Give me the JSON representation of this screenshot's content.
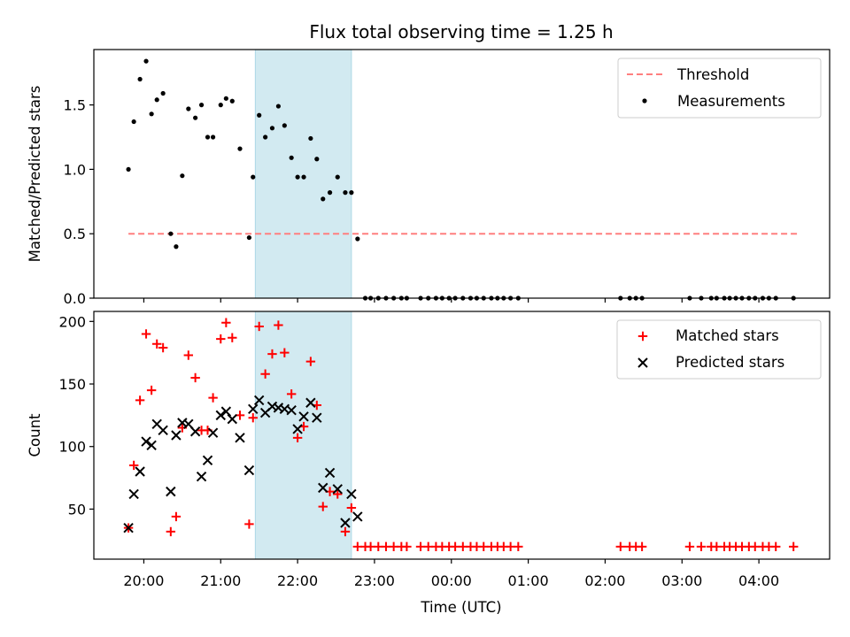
{
  "chart_data": {
    "title": "Flux total observing time = 1.25 h",
    "xlabel": "Time (UTC)",
    "x_unit": "hours UTC (hours past 24 = next day)",
    "x_ticks": [
      {
        "t": 20,
        "label": "20:00"
      },
      {
        "t": 21,
        "label": "21:00"
      },
      {
        "t": 22,
        "label": "22:00"
      },
      {
        "t": 23,
        "label": "23:00"
      },
      {
        "t": 24,
        "label": "00:00"
      },
      {
        "t": 25,
        "label": "01:00"
      },
      {
        "t": 26,
        "label": "02:00"
      },
      {
        "t": 27,
        "label": "03:00"
      },
      {
        "t": 28,
        "label": "04:00"
      }
    ],
    "xlim": [
      19.35,
      28.92
    ],
    "highlight_band": {
      "x_start": 21.45,
      "x_end": 22.7,
      "color": "#add8e6"
    },
    "panels": [
      {
        "type": "scatter",
        "ylabel": "Matched/Predicted stars",
        "ylim": [
          0,
          1.93
        ],
        "y_ticks": [
          "0.0",
          "0.5",
          "1.0",
          "1.5"
        ],
        "legend": {
          "placement": "top-right",
          "threshold_label": "Threshold",
          "measurements_label": "Measurements"
        },
        "threshold": {
          "value": 0.5,
          "x_start": 19.8,
          "x_end": 28.5,
          "color": "#ff7f7f"
        },
        "series": [
          {
            "name": "Measurements",
            "color": "#000000",
            "x": [
              19.8,
              19.87,
              19.95,
              20.03,
              20.1,
              20.17,
              20.25,
              20.35,
              20.42,
              20.5,
              20.58,
              20.67,
              20.75,
              20.83,
              20.9,
              21.0,
              21.07,
              21.15,
              21.25,
              21.37,
              21.42,
              21.5,
              21.58,
              21.67,
              21.75,
              21.83,
              21.92,
              22.0,
              22.08,
              22.17,
              22.25,
              22.33,
              22.42,
              22.52,
              22.62,
              22.7,
              22.78,
              22.88,
              22.95,
              23.05,
              23.15,
              23.25,
              23.35,
              23.42,
              23.6,
              23.7,
              23.8,
              23.88,
              23.97,
              24.05,
              24.15,
              24.25,
              24.33,
              24.42,
              24.52,
              24.6,
              24.68,
              24.77,
              24.87,
              26.2,
              26.32,
              26.4,
              26.48,
              27.1,
              27.25,
              27.38,
              27.45,
              27.55,
              27.62,
              27.7,
              27.78,
              27.87,
              27.95,
              28.05,
              28.13,
              28.22,
              28.45
            ],
            "y": [
              1.0,
              1.37,
              1.7,
              1.84,
              1.43,
              1.54,
              1.59,
              0.5,
              0.4,
              0.95,
              1.47,
              1.4,
              1.5,
              1.25,
              1.25,
              1.5,
              1.55,
              1.53,
              1.16,
              0.47,
              0.94,
              1.42,
              1.25,
              1.32,
              1.49,
              1.34,
              1.09,
              0.94,
              0.94,
              1.24,
              1.08,
              0.77,
              0.82,
              0.94,
              0.82,
              0.82,
              0.46,
              0,
              0,
              0,
              0,
              0,
              0,
              0,
              0,
              0,
              0,
              0,
              0,
              0,
              0,
              0,
              0,
              0,
              0,
              0,
              0,
              0,
              0,
              0,
              0,
              0,
              0,
              0,
              0,
              0,
              0,
              0,
              0,
              0,
              0,
              0,
              0,
              0,
              0,
              0,
              0
            ]
          }
        ]
      },
      {
        "type": "scatter",
        "ylabel": "Count",
        "ylim": [
          10,
          208
        ],
        "y_ticks": [
          "50",
          "100",
          "150",
          "200"
        ],
        "legend": {
          "placement": "top-right",
          "matched_label": "Matched stars",
          "predicted_label": "Predicted stars"
        },
        "series": [
          {
            "name": "Matched stars",
            "marker": "+",
            "color": "#ff0000",
            "x": [
              19.8,
              19.87,
              19.95,
              20.03,
              20.1,
              20.17,
              20.25,
              20.35,
              20.42,
              20.5,
              20.58,
              20.67,
              20.75,
              20.83,
              20.9,
              21.0,
              21.07,
              21.15,
              21.25,
              21.37,
              21.42,
              21.5,
              21.58,
              21.67,
              21.75,
              21.83,
              21.92,
              22.0,
              22.08,
              22.17,
              22.25,
              22.33,
              22.42,
              22.52,
              22.62,
              22.7,
              22.78,
              22.88,
              22.95,
              23.05,
              23.15,
              23.25,
              23.35,
              23.42,
              23.6,
              23.7,
              23.8,
              23.88,
              23.97,
              24.05,
              24.15,
              24.25,
              24.33,
              24.42,
              24.52,
              24.6,
              24.68,
              24.77,
              24.87,
              26.2,
              26.32,
              26.4,
              26.48,
              27.1,
              27.25,
              27.38,
              27.45,
              27.55,
              27.62,
              27.7,
              27.78,
              27.87,
              27.95,
              28.05,
              28.13,
              28.22,
              28.45
            ],
            "y": [
              35,
              85,
              137,
              190,
              145,
              182,
              179,
              32,
              44,
              115,
              173,
              155,
              113,
              113,
              139,
              186,
              199,
              187,
              125,
              38,
              123,
              196,
              158,
              174,
              197,
              175,
              142,
              107,
              116,
              168,
              133,
              52,
              64,
              62,
              32,
              51,
              20,
              20,
              20,
              20,
              20,
              20,
              20,
              20,
              20,
              20,
              20,
              20,
              20,
              20,
              20,
              20,
              20,
              20,
              20,
              20,
              20,
              20,
              20,
              20,
              20,
              20,
              20,
              20,
              20,
              20,
              20,
              20,
              20,
              20,
              20,
              20,
              20,
              20,
              20,
              20,
              20
            ]
          },
          {
            "name": "Predicted stars",
            "marker": "x",
            "color": "#000000",
            "x": [
              19.8,
              19.87,
              19.95,
              20.03,
              20.1,
              20.17,
              20.25,
              20.35,
              20.42,
              20.5,
              20.58,
              20.67,
              20.75,
              20.83,
              20.9,
              21.0,
              21.07,
              21.15,
              21.25,
              21.37,
              21.42,
              21.5,
              21.58,
              21.67,
              21.75,
              21.83,
              21.92,
              22.0,
              22.08,
              22.17,
              22.25,
              22.33,
              22.42,
              22.52,
              22.62,
              22.7,
              22.78
            ],
            "y": [
              35,
              62,
              80,
              104,
              101,
              118,
              113,
              64,
              109,
              119,
              118,
              112,
              76,
              89,
              111,
              125,
              128,
              122,
              107,
              81,
              130,
              137,
              127,
              132,
              131,
              130,
              129,
              114,
              124,
              135,
              123,
              67,
              79,
              66,
              39,
              62,
              44
            ]
          }
        ]
      }
    ]
  }
}
